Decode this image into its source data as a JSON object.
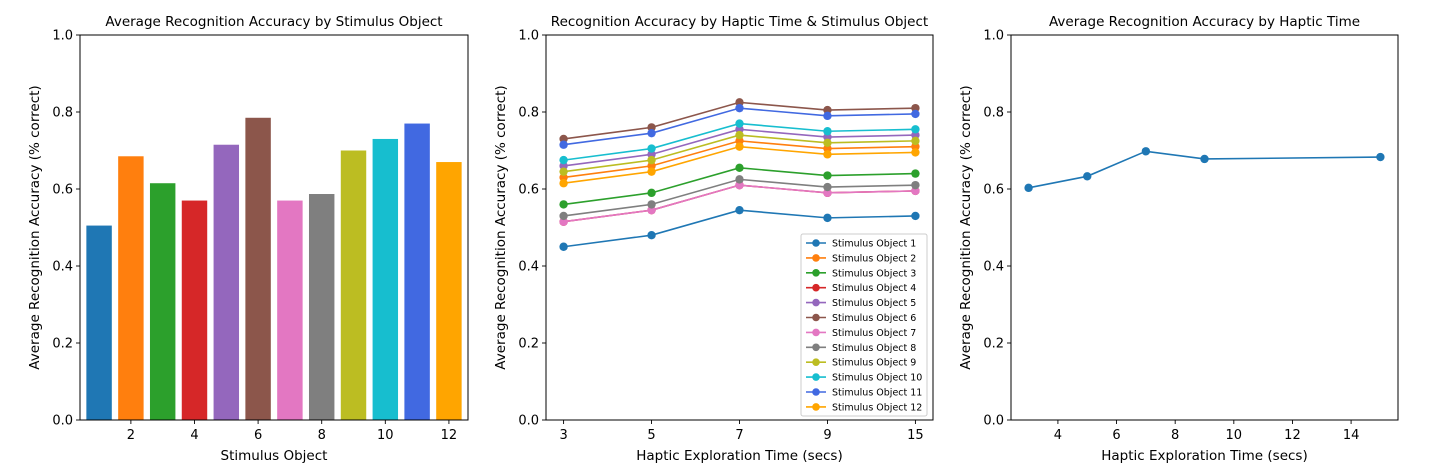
{
  "chart_data": [
    {
      "type": "bar",
      "title": "Average Recognition Accuracy by Stimulus Object",
      "xlabel": "Stimulus Object",
      "ylabel": "Average Recognition Accuracy (% correct)",
      "categories": [
        1,
        2,
        3,
        4,
        5,
        6,
        7,
        8,
        9,
        10,
        11,
        12
      ],
      "values": [
        0.505,
        0.685,
        0.615,
        0.57,
        0.715,
        0.785,
        0.57,
        0.587,
        0.7,
        0.73,
        0.77,
        0.67
      ],
      "colors": [
        "#1f77b4",
        "#ff7f0e",
        "#2ca02c",
        "#d62728",
        "#9467bd",
        "#8c564b",
        "#e377c2",
        "#7f7f7f",
        "#bcbd22",
        "#17becf",
        "#4169e1",
        "#ffa500"
      ],
      "xticks": [
        "2",
        "4",
        "6",
        "8",
        "10",
        "12"
      ],
      "yticks": [
        "0.0",
        "0.2",
        "0.4",
        "0.6",
        "0.8",
        "1.0"
      ],
      "ylim": [
        0,
        1.0
      ],
      "grid": false
    },
    {
      "type": "line",
      "title": "Recognition Accuracy by Haptic Time & Stimulus Object",
      "xlabel": "Haptic Exploration Time (secs)",
      "ylabel": "Average Recognition Accuracy (% correct)",
      "x": [
        "3",
        "5",
        "7",
        "9",
        "15"
      ],
      "xticks": [
        "3",
        "5",
        "7",
        "9",
        "15"
      ],
      "yticks": [
        "0.0",
        "0.2",
        "0.4",
        "0.6",
        "0.8",
        "1.0"
      ],
      "ylim": [
        0,
        1.0
      ],
      "legend_position": "lower-right",
      "grid": false,
      "series": [
        {
          "name": "Stimulus Object 1",
          "color": "#1f77b4",
          "values": [
            0.45,
            0.48,
            0.545,
            0.525,
            0.53
          ]
        },
        {
          "name": "Stimulus Object 2",
          "color": "#ff7f0e",
          "values": [
            0.63,
            0.66,
            0.725,
            0.705,
            0.71
          ]
        },
        {
          "name": "Stimulus Object 3",
          "color": "#2ca02c",
          "values": [
            0.56,
            0.59,
            0.655,
            0.635,
            0.64
          ]
        },
        {
          "name": "Stimulus Object 4",
          "color": "#d62728",
          "values": [
            0.515,
            0.545,
            0.61,
            0.59,
            0.595
          ]
        },
        {
          "name": "Stimulus Object 5",
          "color": "#9467bd",
          "values": [
            0.66,
            0.69,
            0.755,
            0.735,
            0.74
          ]
        },
        {
          "name": "Stimulus Object 6",
          "color": "#8c564b",
          "values": [
            0.73,
            0.76,
            0.825,
            0.805,
            0.81
          ]
        },
        {
          "name": "Stimulus Object 7",
          "color": "#e377c2",
          "values": [
            0.515,
            0.545,
            0.61,
            0.59,
            0.595
          ]
        },
        {
          "name": "Stimulus Object 8",
          "color": "#7f7f7f",
          "values": [
            0.53,
            0.56,
            0.625,
            0.605,
            0.61
          ]
        },
        {
          "name": "Stimulus Object 9",
          "color": "#bcbd22",
          "values": [
            0.645,
            0.675,
            0.74,
            0.72,
            0.725
          ]
        },
        {
          "name": "Stimulus Object 10",
          "color": "#17becf",
          "values": [
            0.675,
            0.705,
            0.77,
            0.75,
            0.755
          ]
        },
        {
          "name": "Stimulus Object 11",
          "color": "#4169e1",
          "values": [
            0.715,
            0.745,
            0.81,
            0.79,
            0.795
          ]
        },
        {
          "name": "Stimulus Object 12",
          "color": "#ffa500",
          "values": [
            0.615,
            0.645,
            0.71,
            0.69,
            0.695
          ]
        }
      ]
    },
    {
      "type": "line",
      "title": "Average Recognition Accuracy by Haptic Time",
      "xlabel": "Haptic Exploration Time (secs)",
      "ylabel": "Average Recognition Accuracy (% correct)",
      "x": [
        3,
        5,
        7,
        9,
        15
      ],
      "xticks": [
        "4",
        "6",
        "8",
        "10",
        "12",
        "14"
      ],
      "yticks": [
        "0.0",
        "0.2",
        "0.4",
        "0.6",
        "0.8",
        "1.0"
      ],
      "xlim": [
        2.4,
        15.6
      ],
      "ylim": [
        0,
        1.0
      ],
      "grid": false,
      "series": [
        {
          "color": "#1f77b4",
          "values": [
            0.603,
            0.633,
            0.698,
            0.678,
            0.683
          ]
        }
      ]
    }
  ]
}
